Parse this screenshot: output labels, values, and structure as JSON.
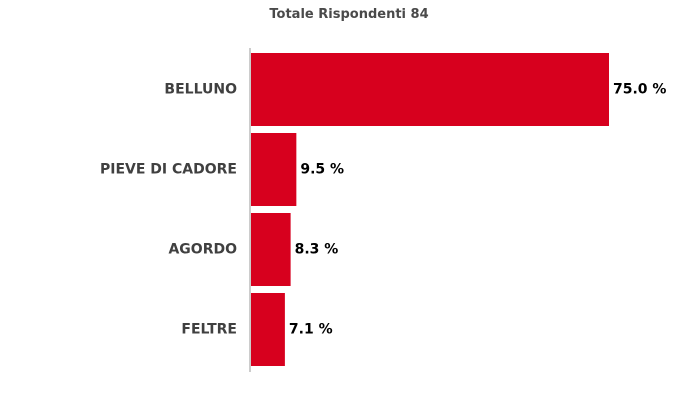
{
  "chart_data": {
    "type": "bar",
    "orientation": "horizontal",
    "title": "Totale Rispondenti 84",
    "categories": [
      "BELLUNO",
      "PIEVE DI CADORE",
      "AGORDO",
      "FELTRE"
    ],
    "values": [
      75.0,
      9.5,
      8.3,
      7.1
    ],
    "value_labels": [
      "75.0 %",
      "9.5 %",
      "8.3 %",
      "7.1 %"
    ],
    "unit": "%",
    "xlim": [
      0,
      75
    ],
    "grid": false,
    "legend": "none",
    "bar_color": "#d7001e"
  }
}
